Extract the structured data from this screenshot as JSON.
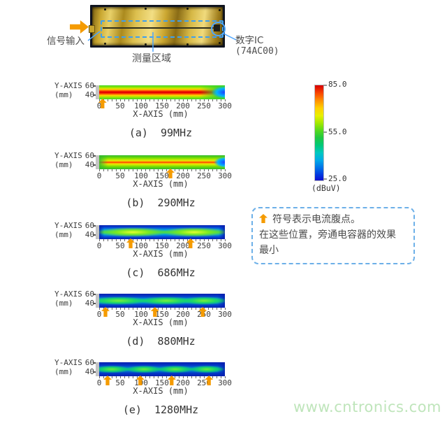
{
  "page": {
    "background": "#ffffff",
    "watermark": "www.cntronics.com"
  },
  "photo": {
    "signal_input_label": "信号输入",
    "ic_label": "数字IC",
    "ic_part_label": "(74AC00)",
    "measure_area_label": "测量区域"
  },
  "axis": {
    "y_name": "Y-AXIS",
    "y_unit": "(mm)",
    "y_tick_top": "60",
    "y_tick_bottom": "40",
    "x_name": "X-AXIS (mm)",
    "x_ticks": [
      "0",
      "50",
      "100",
      "150",
      "200",
      "250",
      "300"
    ],
    "x_tick_mm": [
      0,
      50,
      100,
      150,
      200,
      250,
      300
    ]
  },
  "colorbar": {
    "max": "85.0",
    "mid": "55.0",
    "min": "25.0",
    "unit": "(dBuV)"
  },
  "figures": [
    {
      "key": "a",
      "caption": "(a)  99MHz",
      "frequency_mhz": 99,
      "arrows_mm": [
        8
      ]
    },
    {
      "key": "b",
      "caption": "(b)  290MHz",
      "frequency_mhz": 290,
      "arrows_mm": [
        170
      ]
    },
    {
      "key": "c",
      "caption": "(c)  686MHz",
      "frequency_mhz": 686,
      "arrows_mm": [
        75,
        218
      ]
    },
    {
      "key": "d",
      "caption": "(d)  880MHz",
      "frequency_mhz": 880,
      "arrows_mm": [
        15,
        133,
        247
      ]
    },
    {
      "key": "e",
      "caption": "(e)  1280MHz",
      "frequency_mhz": 1280,
      "arrows_mm": [
        20,
        98,
        173,
        262
      ]
    }
  ],
  "note": {
    "lines": [
      "符号表示电流腹点。",
      "在这些位置，旁通电容器的效果",
      "最小"
    ]
  },
  "colors": {
    "accent_orange": "#f59b00",
    "leader_blue": "#4da6ff",
    "note_border_blue": "#6db0e8",
    "watermark_green": "#bfe5bb",
    "pcb_gold": "#d9bc4a"
  },
  "chart_data": {
    "type": "heatmap",
    "shared_axes": {
      "xlabel": "X-AXIS (mm)",
      "ylabel": "Y-AXIS (mm)",
      "x_range": [
        0,
        300
      ],
      "y_range": [
        40,
        60
      ],
      "x_ticks": [
        0,
        50,
        100,
        150,
        200,
        250,
        300
      ],
      "y_ticks": [
        40,
        60
      ],
      "colorbar": {
        "min": 25.0,
        "mid": 55.0,
        "max": 85.0,
        "unit": "dBuV",
        "colormap": "jet"
      },
      "legend_note": "orange up-arrows mark current antinodes (电流腹点)"
    },
    "panels": [
      {
        "label": "(a)",
        "frequency_mhz": 99,
        "current_antinodes_mm": [
          8
        ],
        "pattern": "one broad red maximum (~85 dBuV) along the center line over nearly the whole 0-280mm length, decaying through green to blue (~25-40 dBuV) at x≈300"
      },
      {
        "label": "(b)",
        "frequency_mhz": 290,
        "current_antinodes_mm": [
          170
        ],
        "pattern": "thin orange-red center line (~75-80 dBuV) across the board with green surround and a small blue tip at the far end"
      },
      {
        "label": "(c)",
        "frequency_mhz": 686,
        "current_antinodes_mm": [
          75,
          218
        ],
        "pattern": "two yellow-green lobes (~60-65 dBuV) with a node near x≈150, dark blue background"
      },
      {
        "label": "(d)",
        "frequency_mhz": 880,
        "current_antinodes_mm": [
          15,
          133,
          247
        ],
        "pattern": "three green lobes (~55-60 dBuV) separated by nodes, dark blue background"
      },
      {
        "label": "(e)",
        "frequency_mhz": 1280,
        "current_antinodes_mm": [
          20,
          98,
          173,
          262
        ],
        "pattern": "four smaller green lobes (~50-58 dBuV) separated by nodes, dark blue background"
      }
    ]
  }
}
